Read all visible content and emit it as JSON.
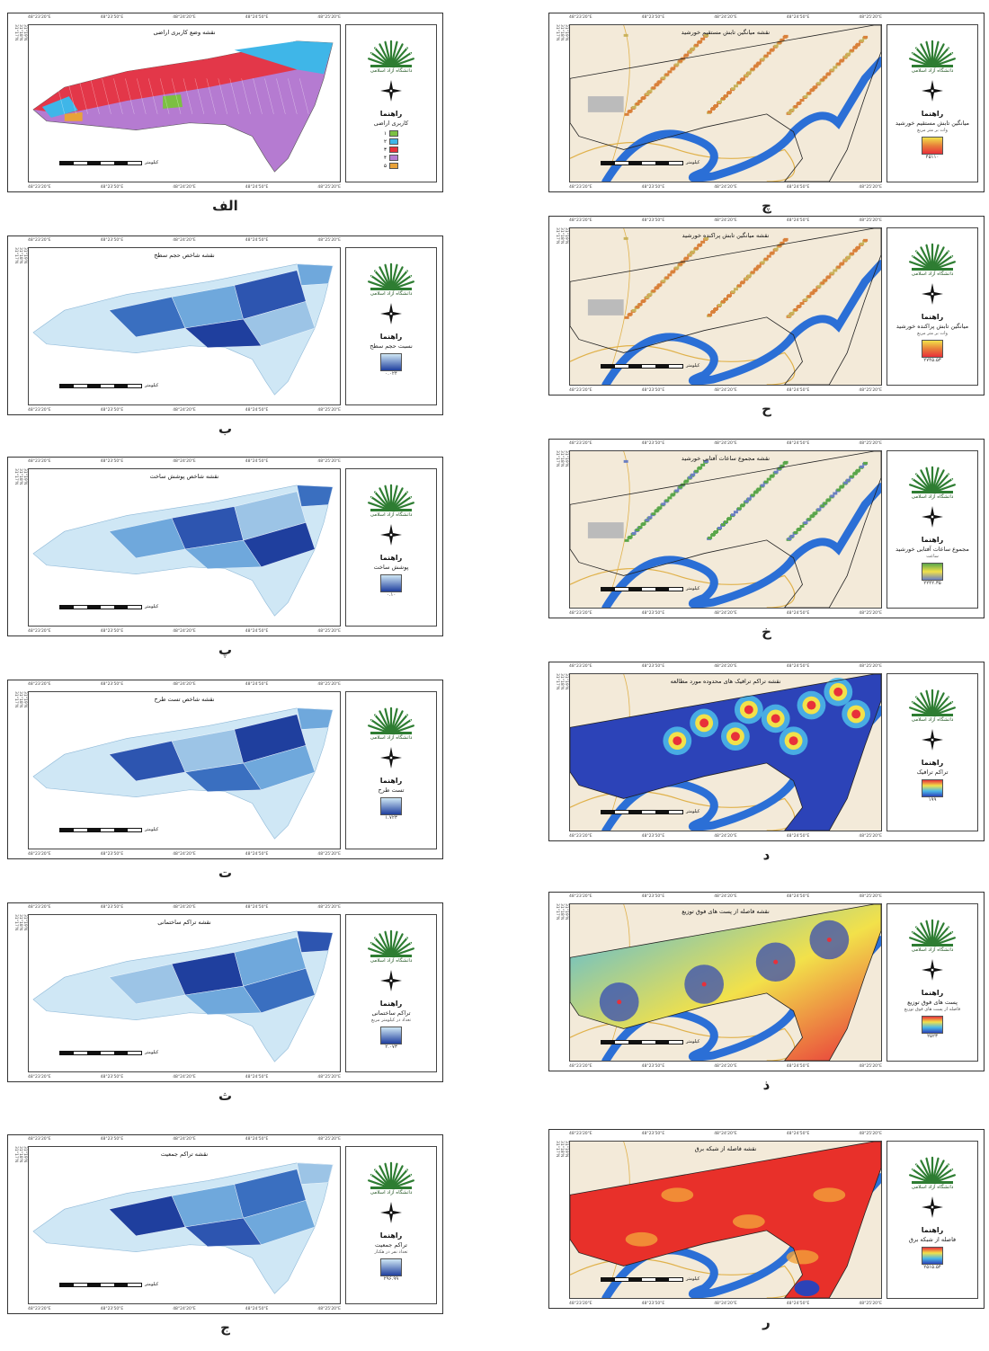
{
  "legend_heading": "راهنما",
  "logo_text": "دانشگاه آزاد اسلامی",
  "scale_unit": "کیلومتر",
  "coords": {
    "top": [
      "48°23'20\"E",
      "48°23'50\"E",
      "48°24'20\"E",
      "48°24'50\"E",
      "48°25'20\"E"
    ],
    "side": [
      "31°19'N",
      "31°18'N",
      "31°17'N"
    ]
  },
  "colors": {
    "blue_light": "#cfe7f5",
    "blue_mid": "#6fa8dc",
    "blue_dark": "#1f3f9e",
    "river": "#2b6fd6",
    "basemap": "#f3ead9"
  },
  "land_use_classes": [
    {
      "label": "۱",
      "color": "#7cc043"
    },
    {
      "label": "۲",
      "color": "#3fb6e8"
    },
    {
      "label": "۳",
      "color": "#e8303a"
    },
    {
      "label": "۴",
      "color": "#b57bd1"
    },
    {
      "label": "۵",
      "color": "#e8a23a"
    }
  ],
  "panels": [
    {
      "caption": "الف",
      "title": "نقشه وضع کاربری اراضی",
      "legend_label": "کاربری اراضی",
      "legend_note": "",
      "ramp_value": "",
      "kind": "landuse"
    },
    {
      "caption": "ب",
      "title": "نقشه شاخص حجم سطح",
      "legend_label": "نسبت حجم سطح",
      "legend_note": "",
      "ramp_value": "۰.۰۲۴",
      "kind": "blue"
    },
    {
      "caption": "پ",
      "title": "نقشه شاخص پوشش ساخت",
      "legend_label": "پوشش ساخت",
      "legend_note": "",
      "ramp_value": "۰.۱۰",
      "kind": "blue"
    },
    {
      "caption": "ت",
      "title": "نقشه شاخص تست طرح",
      "legend_label": "تست طرح",
      "legend_note": "",
      "ramp_value": "۱.۷۲۳",
      "kind": "blue"
    },
    {
      "caption": "ث",
      "title": "نقشه تراکم ساختمانی",
      "legend_label": "تراکم ساختمانی",
      "legend_note": "تعداد در کیلومتر مربع",
      "ramp_value": "۲.۰۷۳",
      "kind": "blue"
    },
    {
      "caption": "ج",
      "title": "نقشه تراکم جمعیت",
      "legend_label": "تراکم جمعیت",
      "legend_note": "تعداد نفر در هکتار",
      "ramp_value": "۲۹۶.۹۹",
      "kind": "blue"
    },
    {
      "caption": "چ",
      "title": "نقشه میانگین تابش مستقیم خورشید",
      "legend_label": "میانگین تابش مستقیم خورشید",
      "legend_note": "وات بر متر مربع",
      "ramp_value": "۴۵۱۱۰",
      "kind": "buildings"
    },
    {
      "caption": "ح",
      "title": "نقشه میانگین تابش پراکنده خورشید",
      "legend_label": "میانگین تابش پراکنده خورشید",
      "legend_note": "وات بر متر مربع",
      "ramp_value": "۲۷۴۵.۵۳",
      "kind": "buildings"
    },
    {
      "caption": "خ",
      "title": "نقشه مجموع ساعات آفتابی خورشید",
      "legend_label": "مجموع ساعات آفتابی خورشید",
      "legend_note": "ساعت",
      "ramp_value": "۲۲۴۲.۳۵",
      "kind": "sunhours"
    },
    {
      "caption": "د",
      "title": "نقشه تراکم ترافیک های محدوده مورد مطالعه",
      "legend_label": "تراکم ترافیک",
      "legend_note": "",
      "ramp_value": "۱۹۹",
      "kind": "heat"
    },
    {
      "caption": "ذ",
      "title": "نقشه فاصله از پست های فوق توزیع",
      "legend_label": "پست های فوق توزیع",
      "legend_note": "فاصله از پست های فوق توزیع",
      "ramp_value": "۲۵۲۳",
      "kind": "distance"
    },
    {
      "caption": "ر",
      "title": "نقشه فاصله از شبکه برق",
      "legend_label": "فاصله از شبکه برق",
      "legend_note": "",
      "ramp_value": "۲۵۱۵.۵۴",
      "kind": "red"
    }
  ]
}
